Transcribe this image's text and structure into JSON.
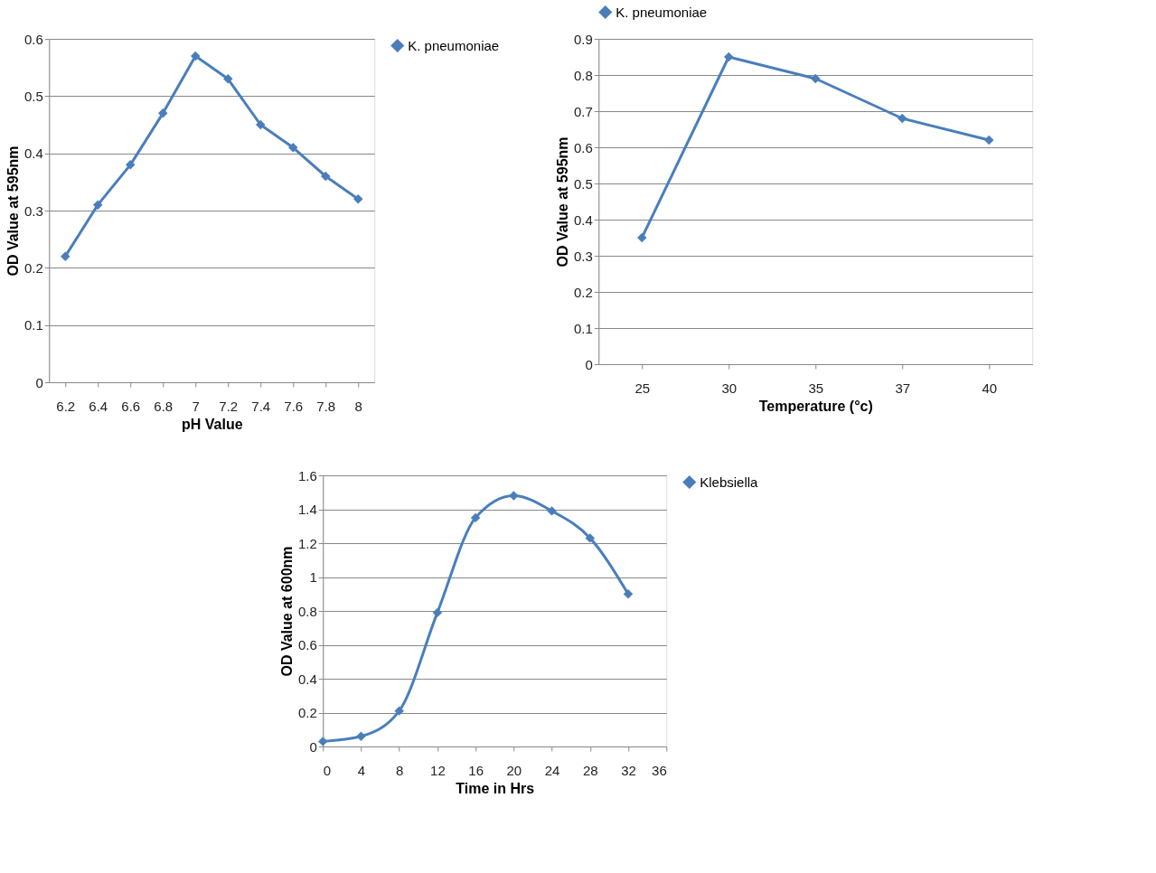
{
  "chart_data": [
    {
      "type": "line",
      "xlabel": "pH Value",
      "ylabel": "OD Value at 595nm",
      "categories": [
        "6.2",
        "6.4",
        "6.6",
        "6.8",
        "7",
        "7.2",
        "7.4",
        "7.6",
        "7.8",
        "8"
      ],
      "series": [
        {
          "name": "K. pneumoniae",
          "color": "#4a7ebb",
          "values": [
            0.22,
            0.31,
            0.38,
            0.47,
            0.57,
            0.53,
            0.45,
            0.41,
            0.36,
            0.32
          ]
        }
      ],
      "ylim": [
        0,
        0.6
      ],
      "yticks": [
        0,
        0.1,
        0.2,
        0.3,
        0.4,
        0.5,
        0.6
      ],
      "grid": "y",
      "legend": "right",
      "marker": "diamond",
      "line_style": "solid"
    },
    {
      "type": "line",
      "xlabel": "Temperature (°c)",
      "ylabel": "OD Value at 595nm",
      "categories": [
        "25",
        "30",
        "35",
        "37",
        "40"
      ],
      "series": [
        {
          "name": "K. pneumoniae",
          "color": "#4a7ebb",
          "values": [
            0.35,
            0.85,
            0.79,
            0.68,
            0.62
          ]
        }
      ],
      "ylim": [
        0,
        0.9
      ],
      "yticks": [
        0,
        0.1,
        0.2,
        0.3,
        0.4,
        0.5,
        0.6,
        0.7,
        0.8,
        0.9
      ],
      "grid": "y",
      "legend": "top",
      "marker": "diamond",
      "line_style": "solid"
    },
    {
      "type": "line",
      "xlabel": "Time in Hrs",
      "ylabel": "OD  Value at 600nm",
      "x": [
        0,
        4,
        8,
        12,
        16,
        20,
        24,
        28,
        32
      ],
      "series": [
        {
          "name": "Klebsiella",
          "color": "#4a7ebb",
          "values": [
            0.03,
            0.06,
            0.21,
            0.79,
            1.35,
            1.48,
            1.39,
            1.23,
            0.9
          ]
        }
      ],
      "xlim": [
        0,
        36
      ],
      "xticks": [
        0,
        4,
        8,
        12,
        16,
        20,
        24,
        28,
        32,
        36
      ],
      "ylim": [
        0,
        1.6
      ],
      "yticks": [
        0,
        0.2,
        0.4,
        0.6,
        0.8,
        1,
        1.2,
        1.4,
        1.6
      ],
      "grid": "y",
      "legend": "right",
      "marker": "diamond",
      "line_style": "solid"
    }
  ]
}
